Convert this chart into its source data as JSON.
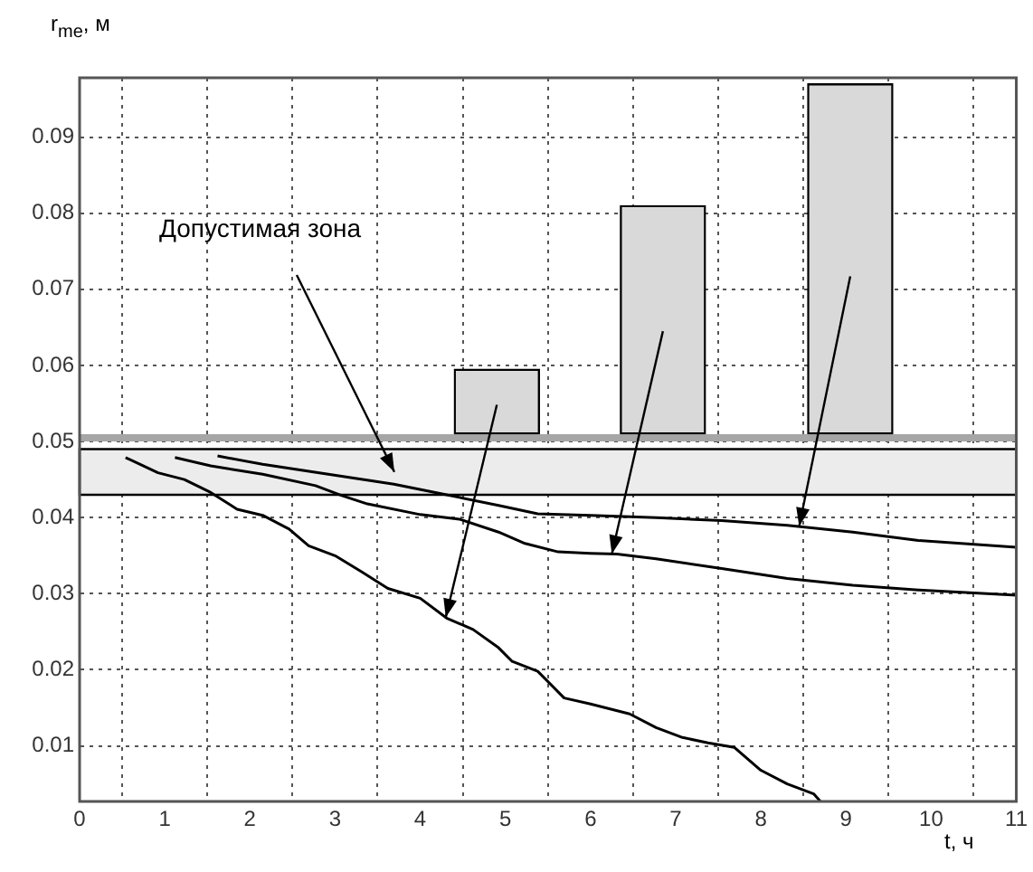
{
  "chart_data": {
    "type": "line",
    "xlabel": "t, ч",
    "ylabel": "r$_{me}$, м",
    "xlim": [
      0,
      11
    ],
    "xticks": [
      0,
      1,
      2,
      3,
      4,
      5,
      6,
      7,
      8,
      9,
      10,
      11
    ],
    "ylim": [
      0.0027,
      0.0978
    ],
    "yticks": [
      0.01,
      0.02,
      0.03,
      0.04,
      0.05,
      0.06,
      0.07,
      0.08,
      0.09
    ],
    "grid": true,
    "legend": false,
    "marker": "none",
    "line_style": "solid",
    "series": [
      {
        "type": "bar",
        "color": "#d9d9d9",
        "x": [
          4.9,
          6.85,
          9.05
        ],
        "base": [
          0.051,
          0.051,
          0.051
        ],
        "values": [
          0.0085,
          0.03,
          0.046
        ]
      },
      {
        "color": "#000000",
        "x": [
          0.54,
          0.92,
          1.23,
          1.54,
          1.85,
          2.15,
          2.46,
          2.69,
          3,
          3.31,
          3.62,
          4,
          4.31,
          4.62,
          4.92,
          5.08,
          5.38,
          5.69,
          6,
          6.46,
          6.77,
          7.08,
          7.38,
          7.69,
          8,
          8.31,
          8.62,
          8.7
        ],
        "values": [
          0.0479,
          0.0459,
          0.045,
          0.0433,
          0.0411,
          0.0403,
          0.0385,
          0.0363,
          0.035,
          0.0329,
          0.0307,
          0.0294,
          0.0268,
          0.0253,
          0.0229,
          0.0211,
          0.0198,
          0.0163,
          0.0155,
          0.0142,
          0.0124,
          0.0111,
          0.0104,
          0.0098,
          0.0068,
          0.005,
          0.0037,
          0.0027
        ]
      },
      {
        "color": "#000000",
        "x": [
          1.12,
          1.54,
          2.15,
          2.77,
          3.08,
          3.38,
          4,
          4.46,
          4.92,
          5.23,
          5.62,
          6,
          6.31,
          6.77,
          7.54,
          8.31,
          9.08,
          9.85,
          11
        ],
        "values": [
          0.0479,
          0.0468,
          0.0457,
          0.0442,
          0.0429,
          0.0418,
          0.0404,
          0.0398,
          0.0381,
          0.0366,
          0.0355,
          0.0353,
          0.0352,
          0.0346,
          0.0333,
          0.032,
          0.0311,
          0.0305,
          0.0298
        ]
      },
      {
        "color": "#000000",
        "x": [
          1.62,
          2.15,
          2.92,
          3.69,
          4.31,
          4.92,
          5.38,
          6,
          6.77,
          7.54,
          8.31,
          9.08,
          9.85,
          11
        ],
        "values": [
          0.0481,
          0.047,
          0.0457,
          0.0444,
          0.043,
          0.0416,
          0.0405,
          0.0403,
          0.04,
          0.0396,
          0.039,
          0.0381,
          0.037,
          0.0361
        ]
      }
    ],
    "ref_lines": [
      {
        "axis": "y",
        "value": 0.0505,
        "color": "#a6a6a6"
      }
    ],
    "bands": [
      {
        "axis": "y",
        "from": 0.043,
        "to": 0.049,
        "color": "#ececec"
      }
    ],
    "annotations": [
      "Допустимая зона"
    ]
  }
}
